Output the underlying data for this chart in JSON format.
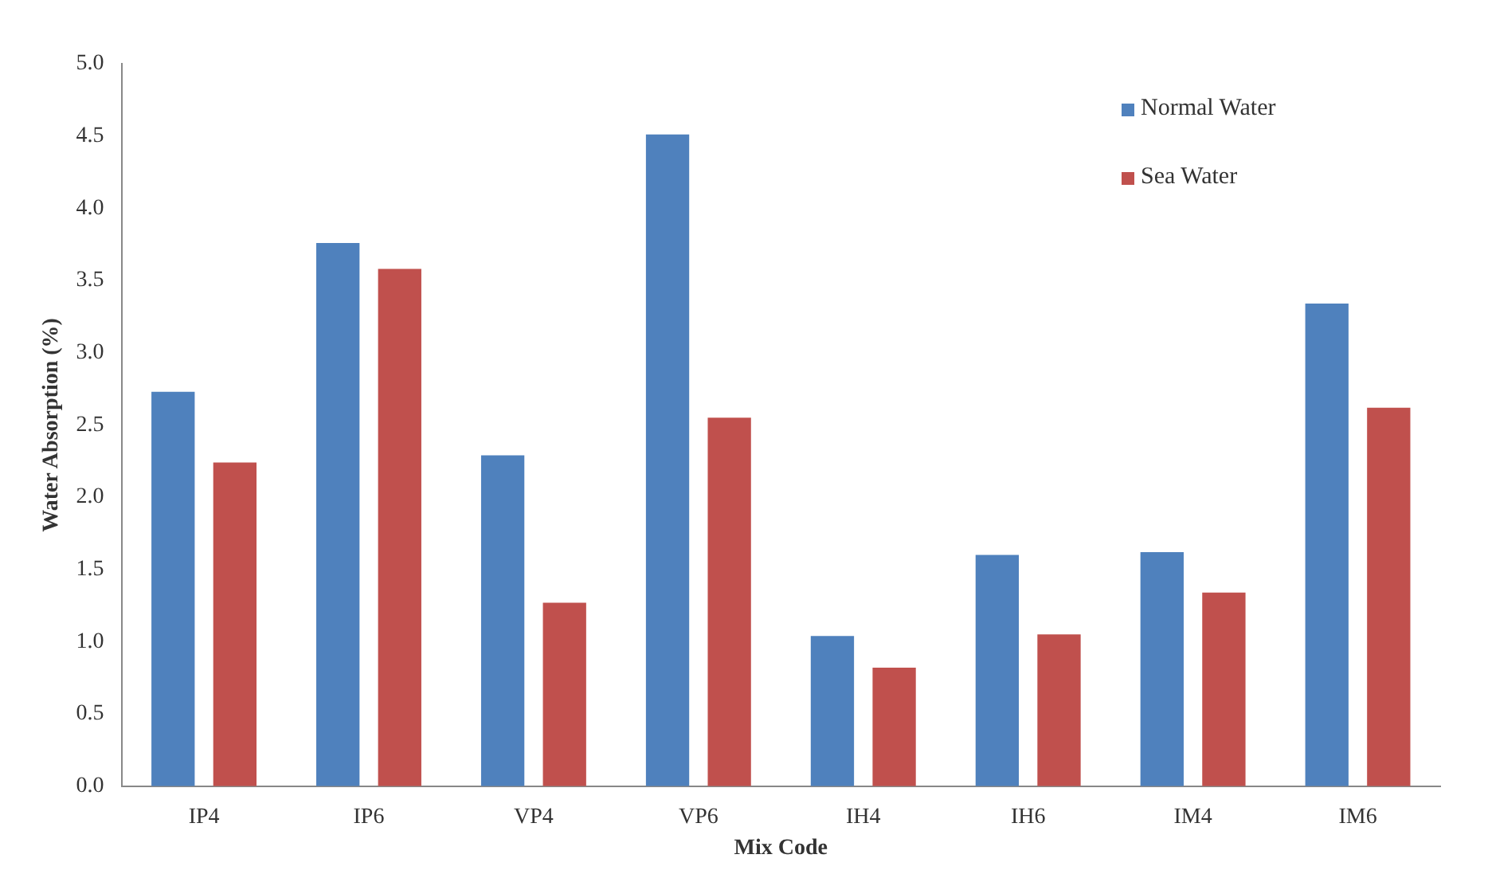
{
  "chart_data": {
    "type": "bar",
    "xlabel": "Mix Code",
    "ylabel": "Water Absorption (%)",
    "categories": [
      "IP4",
      "IP6",
      "VP4",
      "VP6",
      "IH4",
      "IH6",
      "IM4",
      "IM6"
    ],
    "series": [
      {
        "name": "Normal Water",
        "color": "#4f81bd",
        "values": [
          2.73,
          3.76,
          2.29,
          4.51,
          1.04,
          1.6,
          1.62,
          3.34
        ]
      },
      {
        "name": "Sea Water",
        "color": "#c0504d",
        "values": [
          2.24,
          3.58,
          1.27,
          2.55,
          0.82,
          1.05,
          1.34,
          2.62
        ]
      }
    ],
    "ylim": [
      0,
      5
    ],
    "yticks": [
      {
        "value": 0,
        "label": "0.0"
      },
      {
        "value": 0.5,
        "label": "0.5"
      },
      {
        "value": 1,
        "label": "1.0"
      },
      {
        "value": 1.5,
        "label": "1.5"
      },
      {
        "value": 2,
        "label": "2.0"
      },
      {
        "value": 2.5,
        "label": "2.5"
      },
      {
        "value": 3,
        "label": "3.0"
      },
      {
        "value": 3.5,
        "label": "3.5"
      },
      {
        "value": 4,
        "label": "4.0"
      },
      {
        "value": 4.5,
        "label": "4.5"
      },
      {
        "value": 5,
        "label": "5.0"
      }
    ],
    "grid": false,
    "legend": "top right"
  }
}
